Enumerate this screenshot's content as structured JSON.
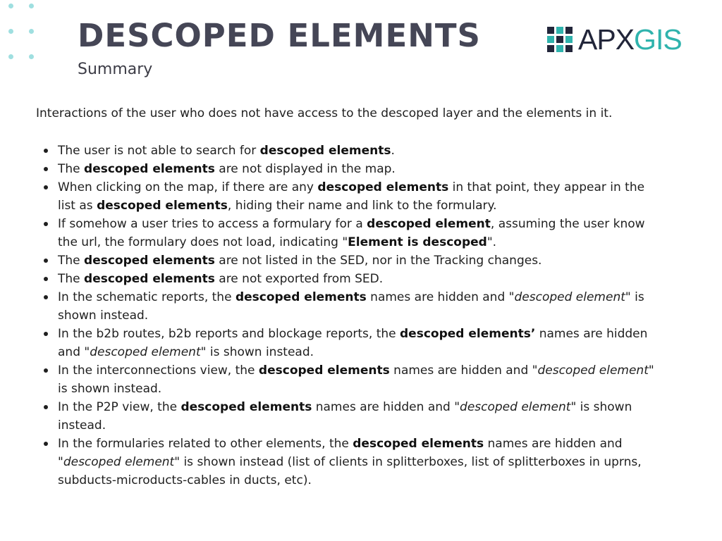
{
  "header": {
    "title": "DESCOPED ELEMENTS",
    "subtitle": "Summary"
  },
  "logo": {
    "text_apx": "APX",
    "text_gis": "GIS",
    "colors": {
      "dark": "#22263a",
      "teal": "#2fb3ad"
    }
  },
  "intro": "Interactions of the user who does not have access to the descoped layer and the elements in it.",
  "bullets": [
    {
      "segments": [
        {
          "t": "The user is not able to search for "
        },
        {
          "t": "descoped elements",
          "b": true
        },
        {
          "t": "."
        }
      ]
    },
    {
      "segments": [
        {
          "t": "The "
        },
        {
          "t": "descoped elements",
          "b": true
        },
        {
          "t": " are not displayed in the map."
        }
      ]
    },
    {
      "segments": [
        {
          "t": "When clicking on the map, if there are any "
        },
        {
          "t": "descoped elements",
          "b": true
        },
        {
          "t": " in that point, they appear in the list as "
        },
        {
          "t": "descoped elements",
          "b": true
        },
        {
          "t": ", hiding their name and link to the formulary."
        }
      ]
    },
    {
      "segments": [
        {
          "t": "If somehow a user tries to access a formulary for a "
        },
        {
          "t": "descoped element",
          "b": true
        },
        {
          "t": ", assuming the user know the url, the formulary does not load, indicating \""
        },
        {
          "t": "Element is descoped",
          "b": true
        },
        {
          "t": "\"."
        }
      ]
    },
    {
      "segments": [
        {
          "t": "The "
        },
        {
          "t": "descoped elements",
          "b": true
        },
        {
          "t": " are not listed in the SED, nor in the Tracking changes."
        }
      ]
    },
    {
      "segments": [
        {
          "t": "The "
        },
        {
          "t": "descoped elements",
          "b": true
        },
        {
          "t": " are not exported from SED."
        }
      ]
    },
    {
      "segments": [
        {
          "t": "In the schematic reports, the "
        },
        {
          "t": "descoped elements",
          "b": true
        },
        {
          "t": " names are hidden and \""
        },
        {
          "t": "descoped element",
          "i": true
        },
        {
          "t": "\" is shown instead."
        }
      ]
    },
    {
      "segments": [
        {
          "t": "In the b2b routes, b2b reports and blockage reports, the "
        },
        {
          "t": "descoped elements’",
          "b": true
        },
        {
          "t": " names are hidden and \""
        },
        {
          "t": "descoped element",
          "i": true
        },
        {
          "t": "\" is shown instead."
        }
      ]
    },
    {
      "segments": [
        {
          "t": "In the interconnections view, the "
        },
        {
          "t": "descoped elements",
          "b": true
        },
        {
          "t": " names are hidden and \""
        },
        {
          "t": "descoped element",
          "i": true
        },
        {
          "t": "\" is shown instead."
        }
      ]
    },
    {
      "segments": [
        {
          "t": "In the P2P view, the "
        },
        {
          "t": "descoped elements",
          "b": true
        },
        {
          "t": " names are hidden and \""
        },
        {
          "t": "descoped element",
          "i": true
        },
        {
          "t": "\" is shown instead."
        }
      ]
    },
    {
      "segments": [
        {
          "t": "In the formularies related to other elements, the "
        },
        {
          "t": "descoped elements",
          "b": true
        },
        {
          "t": " names are hidden and \""
        },
        {
          "t": "descoped element",
          "i": true
        },
        {
          "t": "\" is shown instead (list of clients in splitterboxes, list of splitterboxes in uprns, subducts-microducts-cables in ducts, etc)."
        }
      ]
    }
  ]
}
